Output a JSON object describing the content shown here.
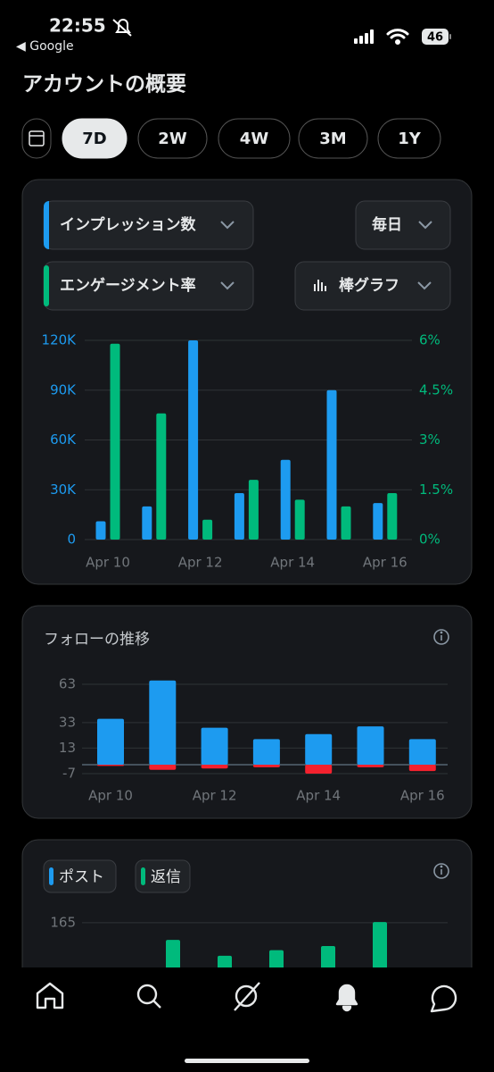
{
  "status_bar": {
    "time": "22:55",
    "back": "◀ Google",
    "battery": "46"
  },
  "header": {
    "title": "アカウントの概要"
  },
  "ranges": [
    "7D",
    "2W",
    "4W",
    "3M",
    "1Y"
  ],
  "selected_range_index": 0,
  "controls": {
    "metric_1": "インプレッション数",
    "interval": "毎日",
    "metric_2": "エンゲージメント率",
    "chart_kind": "棒グラフ"
  },
  "chart_data": [
    {
      "type": "bar",
      "categories": [
        "Apr 10",
        null,
        "Apr 12",
        null,
        "Apr 14",
        null,
        "Apr 16"
      ],
      "series": [
        {
          "color": "#1d9bf0",
          "values": [
            11000,
            20000,
            120000,
            28000,
            48000,
            90000,
            22000
          ]
        },
        {
          "color": "#00ba7c",
          "axis": "y2",
          "values": [
            5.9,
            3.8,
            0.6,
            1.8,
            1.2,
            1.0,
            1.4
          ]
        }
      ],
      "ylim": [
        0,
        120000
      ],
      "yticks": [
        0,
        {
          "value": 30000,
          "label": "30K"
        },
        {
          "value": 60000,
          "label": "60K"
        },
        {
          "value": 90000,
          "label": "90K"
        },
        {
          "value": 120000,
          "label": "120K"
        }
      ],
      "y2lim": [
        0,
        6
      ],
      "y2ticks": [
        {
          "value": 0,
          "label": "0%"
        },
        {
          "value": 1.5,
          "label": "1.5%"
        },
        {
          "value": 3,
          "label": "3%"
        },
        {
          "value": 4.5,
          "label": "4.5%"
        },
        {
          "value": 6,
          "label": "6%"
        }
      ],
      "grid": true
    },
    {
      "type": "bar",
      "title": "フォローの推移",
      "categories": [
        "Apr 10",
        null,
        "Apr 12",
        null,
        "Apr 14",
        null,
        "Apr 16"
      ],
      "series": [
        {
          "color": "#1d9bf0",
          "values": [
            36,
            66,
            29,
            20,
            24,
            30,
            20
          ]
        },
        {
          "color": "#f4212e",
          "values": [
            -1,
            -4,
            -3,
            -2,
            -7,
            -2,
            -5
          ]
        }
      ],
      "ylim": [
        -7,
        66
      ],
      "yticks": [
        63,
        33,
        13,
        -7
      ],
      "grid": true
    },
    {
      "type": "bar",
      "series": [
        {
          "name": "ポスト",
          "color": "#1d9bf0",
          "values": [
            null,
            null,
            null,
            null,
            null,
            null,
            null
          ]
        },
        {
          "name": "返信",
          "color": "#00ba7c",
          "values": [
            null,
            140,
            117,
            125,
            131,
            166,
            null
          ]
        }
      ],
      "ylim": [
        0,
        170
      ],
      "yticks": [
        165
      ],
      "grid": true
    }
  ]
}
